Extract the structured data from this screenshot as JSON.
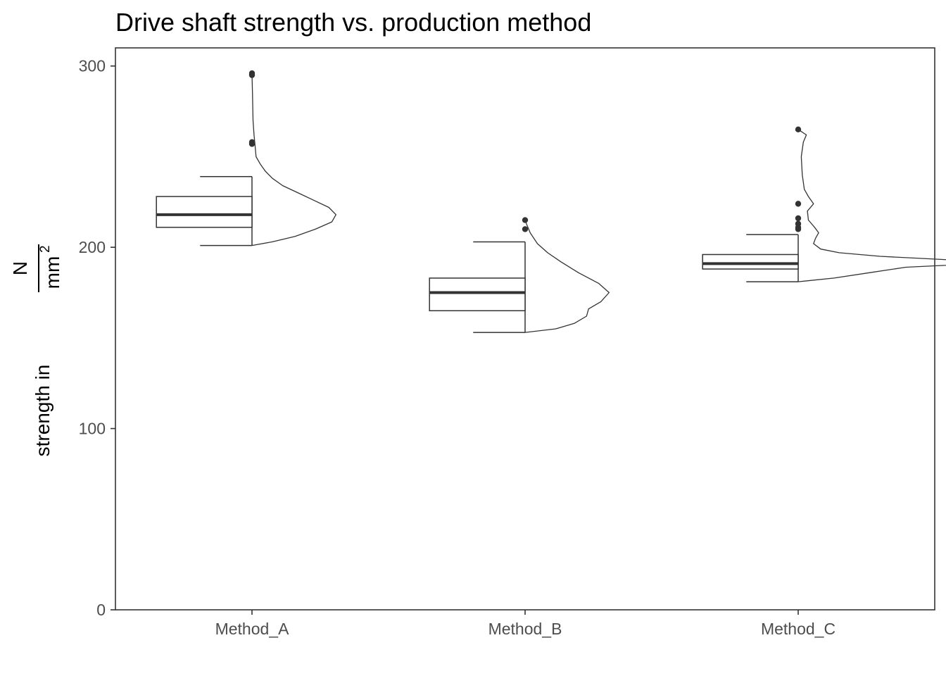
{
  "chart_data": {
    "type": "raincloud",
    "title": "Drive shaft strength vs. production method",
    "xlabel": "",
    "ylabel": {
      "prefix": "strength in",
      "numerator": "N",
      "denominator": "mm",
      "exponent": "2"
    },
    "ylim": [
      0,
      310
    ],
    "y_ticks": [
      0,
      100,
      200,
      300
    ],
    "grid": false,
    "categories": [
      "Method_A",
      "Method_B",
      "Method_C"
    ],
    "series": [
      {
        "category": "Method_A",
        "box": {
          "whisker_low": 201,
          "q1": 211,
          "median": 218,
          "q3": 228,
          "whisker_high": 239
        },
        "outliers": [
          296,
          295,
          258,
          257
        ],
        "density": [
          [
            201,
            0.0
          ],
          [
            203,
            0.2
          ],
          [
            206,
            0.42
          ],
          [
            210,
            0.62
          ],
          [
            214,
            0.78
          ],
          [
            218,
            0.82
          ],
          [
            222,
            0.75
          ],
          [
            226,
            0.6
          ],
          [
            230,
            0.45
          ],
          [
            234,
            0.3
          ],
          [
            238,
            0.2
          ],
          [
            242,
            0.13
          ],
          [
            246,
            0.08
          ],
          [
            250,
            0.04
          ],
          [
            256,
            0.03
          ],
          [
            262,
            0.02
          ],
          [
            270,
            0.01
          ],
          [
            285,
            0.005
          ],
          [
            296,
            0.0
          ]
        ]
      },
      {
        "category": "Method_B",
        "box": {
          "whisker_low": 153,
          "q1": 165,
          "median": 175,
          "q3": 183,
          "whisker_high": 203
        },
        "outliers": [
          215,
          210
        ],
        "density": [
          [
            153,
            0.0
          ],
          [
            155,
            0.3
          ],
          [
            158,
            0.48
          ],
          [
            162,
            0.6
          ],
          [
            166,
            0.62
          ],
          [
            170,
            0.74
          ],
          [
            175,
            0.82
          ],
          [
            180,
            0.72
          ],
          [
            186,
            0.52
          ],
          [
            192,
            0.35
          ],
          [
            197,
            0.22
          ],
          [
            202,
            0.12
          ],
          [
            208,
            0.05
          ],
          [
            212,
            0.02
          ],
          [
            215,
            0.0
          ]
        ]
      },
      {
        "category": "Method_C",
        "box": {
          "whisker_low": 181,
          "q1": 188,
          "median": 191,
          "q3": 196,
          "whisker_high": 207
        },
        "outliers": [
          265,
          224,
          216,
          213,
          211,
          210
        ],
        "density": [
          [
            181,
            0.0
          ],
          [
            183,
            0.35
          ],
          [
            186,
            0.7
          ],
          [
            189,
            1.05
          ],
          [
            191,
            1.8
          ],
          [
            193,
            1.5
          ],
          [
            195,
            0.8
          ],
          [
            197,
            0.4
          ],
          [
            199,
            0.22
          ],
          [
            202,
            0.15
          ],
          [
            205,
            0.17
          ],
          [
            208,
            0.2
          ],
          [
            211,
            0.16
          ],
          [
            215,
            0.1
          ],
          [
            220,
            0.09
          ],
          [
            224,
            0.15
          ],
          [
            228,
            0.1
          ],
          [
            232,
            0.06
          ],
          [
            240,
            0.04
          ],
          [
            250,
            0.03
          ],
          [
            258,
            0.05
          ],
          [
            262,
            0.08
          ],
          [
            265,
            0.0
          ]
        ]
      }
    ]
  }
}
